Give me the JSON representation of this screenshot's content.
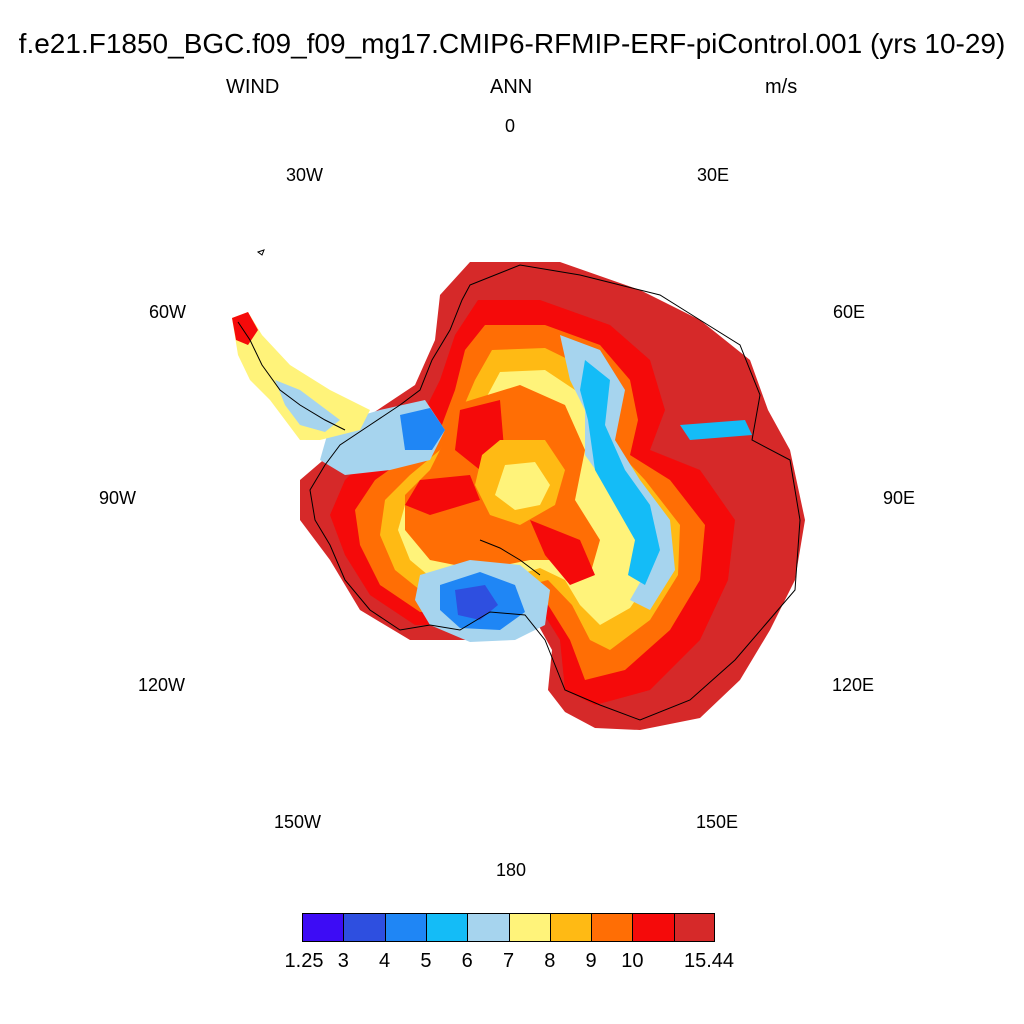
{
  "title": "f.e21.F1850_BGC.f09_f09_mg17.CMIP6-RFMIP-ERF-piControl.001 (yrs 10-29)",
  "subtitle": {
    "left": "WIND",
    "center": "ANN",
    "right": "m/s"
  },
  "longitude_labels": {
    "lon_0": "0",
    "lon_30e": "30E",
    "lon_60e": "60E",
    "lon_90e": "90E",
    "lon_120e": "120E",
    "lon_150e": "150E",
    "lon_180": "180",
    "lon_150w": "150W",
    "lon_120w": "120W",
    "lon_90w": "90W",
    "lon_60w": "60W",
    "lon_30w": "30W"
  },
  "colorbar": {
    "colors": [
      "#3d0cf5",
      "#2e4fe0",
      "#1f86f5",
      "#14bcf7",
      "#a6d4ee",
      "#fff37a",
      "#ffba14",
      "#ff6e05",
      "#f50a0a",
      "#d62929"
    ],
    "labels": [
      "1.25",
      "3",
      "4",
      "5",
      "6",
      "7",
      "8",
      "9",
      "10",
      "15.44"
    ]
  },
  "colors": {
    "coastline": "#000000",
    "background": "#ffffff"
  }
}
